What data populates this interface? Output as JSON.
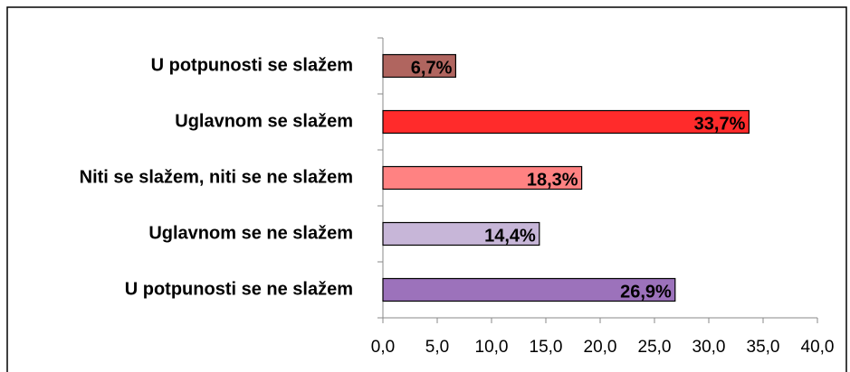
{
  "chart_data": {
    "type": "bar",
    "orientation": "horizontal",
    "categories": [
      "U potpunosti se slažem",
      "Uglavnom se slažem",
      "Niti se slažem, niti se ne slažem",
      "Uglavnom se ne slažem",
      "U potpunosti se ne slažem"
    ],
    "values": [
      6.7,
      33.7,
      18.3,
      14.4,
      26.9
    ],
    "value_labels": [
      "6,7%",
      "33,7%",
      "18,3%",
      "14,4%",
      "26,9%"
    ],
    "colors": [
      "#b0655f",
      "#ff2b2b",
      "#ff8282",
      "#c7b6d8",
      "#9c72bb"
    ],
    "xlim": [
      0,
      40
    ],
    "xticks": [
      {
        "value": 0,
        "label": "0,0"
      },
      {
        "value": 5,
        "label": "5,0"
      },
      {
        "value": 10,
        "label": "10,0"
      },
      {
        "value": 15,
        "label": "15,0"
      },
      {
        "value": 20,
        "label": "20,0"
      },
      {
        "value": 25,
        "label": "25,0"
      },
      {
        "value": 30,
        "label": "30,0"
      },
      {
        "value": 35,
        "label": "35,0"
      },
      {
        "value": 40,
        "label": "40,0"
      }
    ],
    "grid": false
  }
}
